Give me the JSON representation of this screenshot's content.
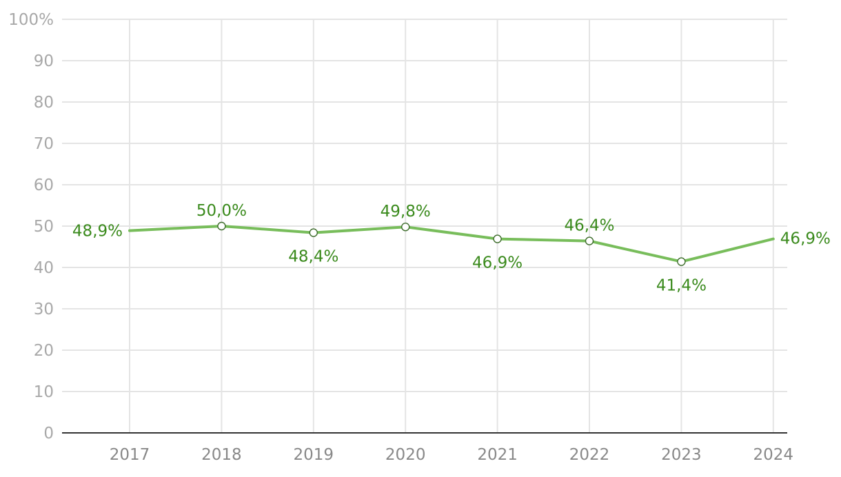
{
  "chart_data": {
    "type": "line",
    "x": [
      "2017",
      "2018",
      "2019",
      "2020",
      "2021",
      "2022",
      "2023",
      "2024"
    ],
    "series": [
      {
        "values": [
          48.9,
          50.0,
          48.4,
          49.8,
          46.9,
          46.4,
          41.4,
          46.9
        ],
        "labels": [
          "48,9%",
          "50,0%",
          "48,4%",
          "49,8%",
          "46,9%",
          "46,4%",
          "41,4%",
          "46,9%"
        ]
      }
    ],
    "y_ticks": [
      "0",
      "10",
      "20",
      "30",
      "40",
      "50",
      "60",
      "70",
      "80",
      "90",
      "100%"
    ],
    "ylim": [
      0,
      100
    ],
    "grid": true,
    "legend": "none",
    "colors": {
      "line": "#78bd5b",
      "label": "#3a8a1c",
      "marker": "#3c6b2a",
      "grid": "#e4e4e4",
      "axis": "#333333"
    }
  }
}
